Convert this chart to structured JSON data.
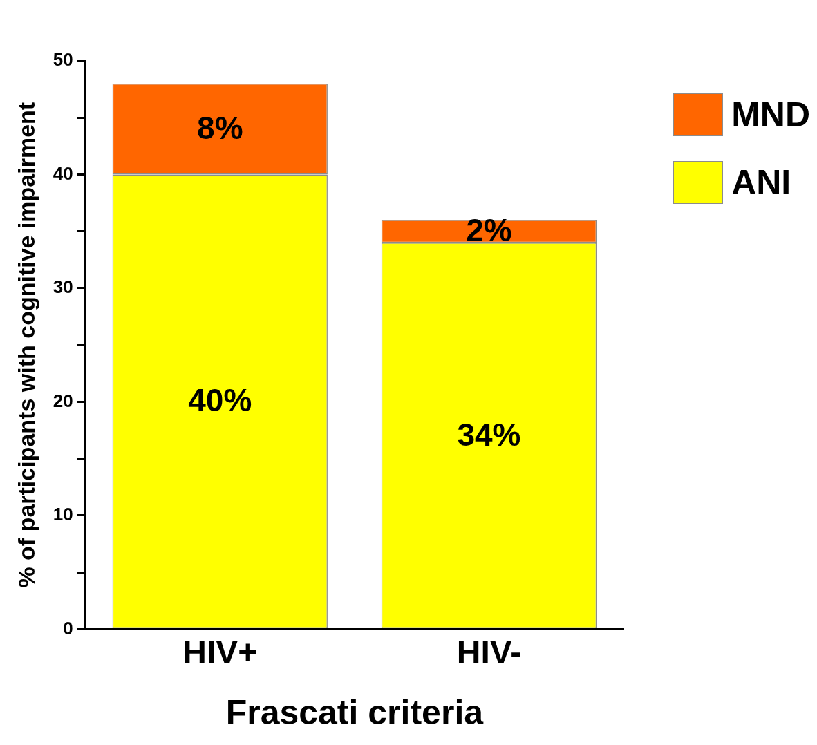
{
  "chart_data": {
    "type": "bar",
    "stacked": true,
    "xlabel": "Frascati criteria",
    "ylabel": "% of participants with cognitive impairment",
    "categories": [
      "HIV+",
      "HIV-"
    ],
    "series": [
      {
        "name": "ANI",
        "color": "#ffff00",
        "values": [
          40,
          34
        ],
        "value_labels": [
          "40%",
          "34%"
        ]
      },
      {
        "name": "MND",
        "color": "#ff6600",
        "values": [
          8,
          2
        ],
        "value_labels": [
          "8%",
          "2%"
        ]
      }
    ],
    "ylim": [
      0,
      50
    ],
    "yticks": [
      0,
      {
        "value": 5,
        "label": null
      },
      10,
      {
        "value": 15,
        "label": null
      },
      20,
      {
        "value": 25,
        "label": null
      },
      30,
      {
        "value": 35,
        "label": null
      },
      40,
      {
        "value": 45,
        "label": null
      },
      50
    ],
    "grid": false,
    "legend": "top right"
  }
}
